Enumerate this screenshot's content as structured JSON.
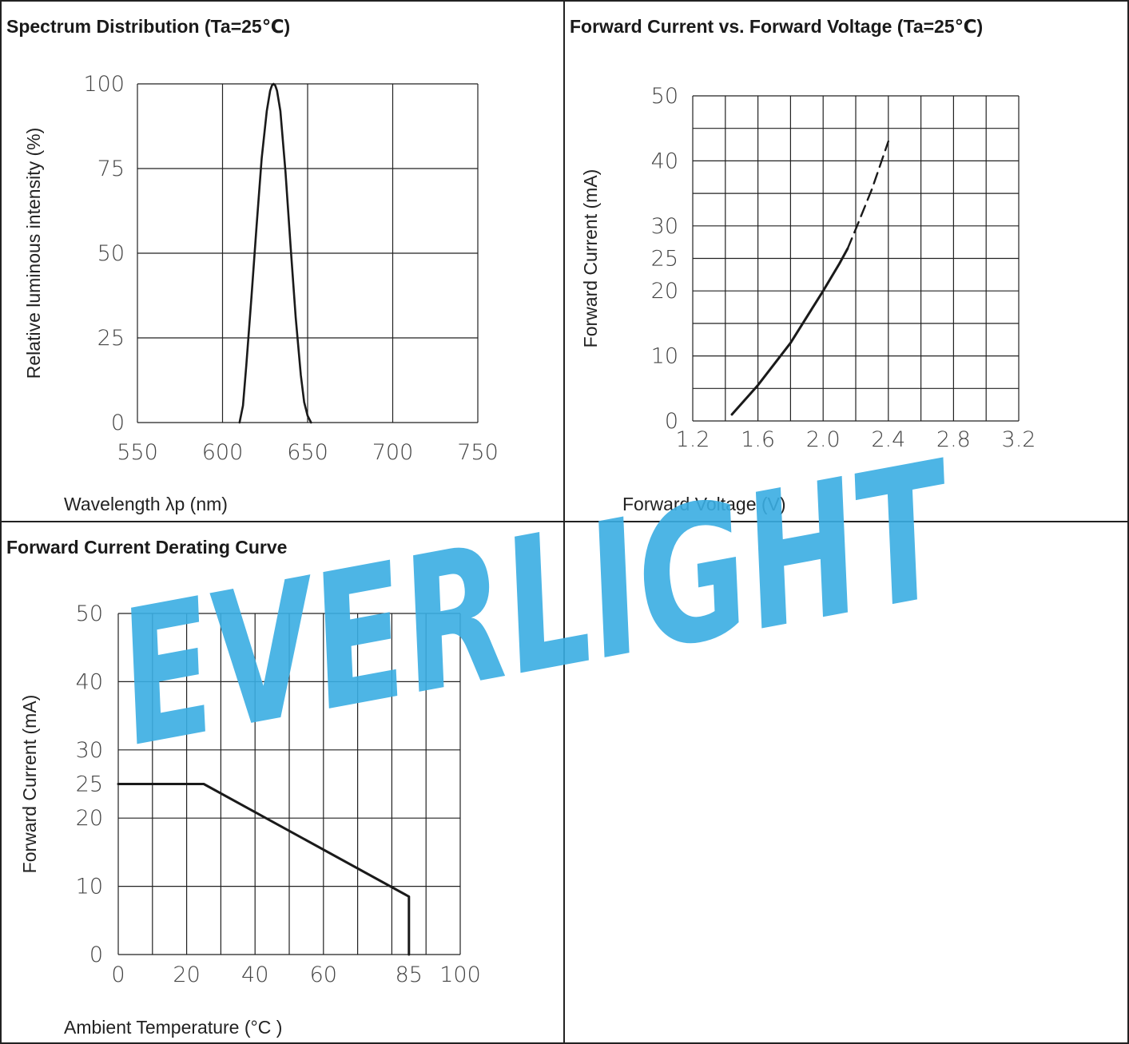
{
  "watermark": {
    "text": "EVERLIGHT",
    "color": "#3aaee3"
  },
  "chart_data": [
    {
      "id": "spectrum",
      "type": "line",
      "title": "Spectrum Distribution (Ta=25℃)",
      "xlabel": "Wavelength λp (nm)",
      "ylabel": "Relative luminous intensity (%)",
      "xlim": [
        550,
        750
      ],
      "ylim": [
        0,
        100
      ],
      "xticks": [
        550,
        600,
        650,
        700,
        750
      ],
      "yticks": [
        0,
        25,
        50,
        75,
        100
      ],
      "grid": true,
      "series": [
        {
          "style": "solid",
          "x": [
            610,
            612,
            614,
            617,
            620,
            623,
            626,
            628,
            629,
            630,
            631,
            632,
            634,
            637,
            640,
            643,
            646,
            648,
            650,
            652
          ],
          "y": [
            0,
            5,
            17,
            37,
            58,
            78,
            92,
            98,
            99.5,
            100,
            99.5,
            98,
            92,
            74,
            52,
            31,
            14,
            6,
            2,
            0
          ]
        }
      ]
    },
    {
      "id": "iv",
      "type": "line",
      "title": "Forward Current vs. Forward Voltage (Ta=25℃)",
      "xlabel": "Forward Voltage (V)",
      "ylabel": "Forward Current (mA)",
      "xlim": [
        1.2,
        3.2
      ],
      "ylim": [
        0,
        50
      ],
      "xticks": [
        "1.2",
        "1.6",
        "2.0",
        "2.4",
        "2.8",
        "3.2"
      ],
      "yticks": [
        0,
        10,
        20,
        25,
        30,
        40,
        50
      ],
      "grid": true,
      "series": [
        {
          "style": "solid",
          "x": [
            1.44,
            1.6,
            1.8,
            2.0,
            2.1,
            2.15
          ],
          "y": [
            1,
            5.5,
            12,
            20,
            24.2,
            26.5
          ]
        },
        {
          "style": "dashed",
          "x": [
            2.15,
            2.2,
            2.3,
            2.4
          ],
          "y": [
            26.5,
            29.5,
            35.7,
            43
          ]
        }
      ]
    },
    {
      "id": "derating",
      "type": "line",
      "title": "Forward Current Derating Curve",
      "xlabel": "Ambient Temperature (°C )",
      "ylabel": "Forward Current (mA)",
      "xlim": [
        0,
        100
      ],
      "ylim": [
        0,
        50
      ],
      "xticks": [
        0,
        20,
        40,
        60,
        85,
        100
      ],
      "yticks": [
        0,
        10,
        20,
        25,
        30,
        40,
        50
      ],
      "grid": true,
      "series": [
        {
          "style": "solid",
          "x": [
            0,
            25,
            85,
            85
          ],
          "y": [
            25,
            25,
            8.5,
            0
          ]
        }
      ]
    }
  ]
}
